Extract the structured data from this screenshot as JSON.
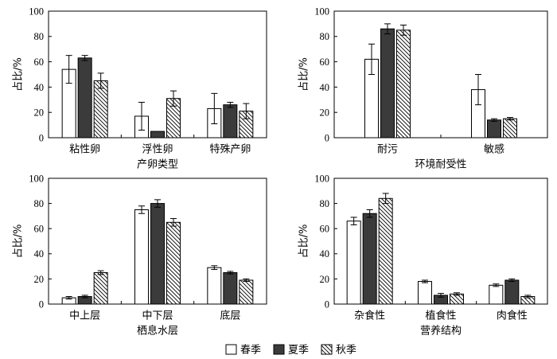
{
  "legend": {
    "position": "bottom",
    "items": [
      {
        "label": "春季",
        "fill": "#ffffff",
        "hatch": false
      },
      {
        "label": "夏季",
        "fill": "#3b3b3b",
        "hatch": false
      },
      {
        "label": "秋季",
        "fill": "#ffffff",
        "hatch": true
      }
    ]
  },
  "chart_data": [
    {
      "type": "bar",
      "xlabel": "产卵类型",
      "ylabel": "占比/%",
      "ylim": [
        0,
        100
      ],
      "yticks": [
        0,
        20,
        40,
        60,
        80,
        100
      ],
      "grid": false,
      "categories": [
        "粘性卵",
        "浮性卵",
        "特殊产卵"
      ],
      "series": [
        {
          "name": "春季",
          "values": [
            54,
            17,
            23
          ],
          "errors": [
            11,
            11,
            12
          ]
        },
        {
          "name": "夏季",
          "values": [
            63,
            5,
            26
          ],
          "errors": [
            2,
            0,
            2
          ]
        },
        {
          "name": "秋季",
          "values": [
            45,
            31,
            21
          ],
          "errors": [
            6,
            6,
            6
          ]
        }
      ]
    },
    {
      "type": "bar",
      "xlabel": "环境耐受性",
      "ylabel": "占比/%",
      "ylim": [
        0,
        100
      ],
      "yticks": [
        0,
        20,
        40,
        60,
        80,
        100
      ],
      "grid": false,
      "categories": [
        "耐污",
        "敏感"
      ],
      "series": [
        {
          "name": "春季",
          "values": [
            62,
            38
          ],
          "errors": [
            12,
            12
          ]
        },
        {
          "name": "夏季",
          "values": [
            86,
            14
          ],
          "errors": [
            4,
            1
          ]
        },
        {
          "name": "秋季",
          "values": [
            85,
            15
          ],
          "errors": [
            4,
            1
          ]
        }
      ]
    },
    {
      "type": "bar",
      "xlabel": "栖息水层",
      "ylabel": "占比/%",
      "ylim": [
        0,
        100
      ],
      "yticks": [
        0,
        20,
        40,
        60,
        80,
        100
      ],
      "grid": false,
      "categories": [
        "中上层",
        "中下层",
        "底层"
      ],
      "series": [
        {
          "name": "春季",
          "values": [
            5,
            75,
            29
          ],
          "errors": [
            1,
            3,
            1.5
          ]
        },
        {
          "name": "夏季",
          "values": [
            6,
            80,
            25
          ],
          "errors": [
            1,
            3,
            1
          ]
        },
        {
          "name": "秋季",
          "values": [
            25,
            65,
            19
          ],
          "errors": [
            1.5,
            3,
            1
          ]
        }
      ]
    },
    {
      "type": "bar",
      "xlabel": "营养结构",
      "ylabel": "占比/%",
      "ylim": [
        0,
        100
      ],
      "yticks": [
        0,
        20,
        40,
        60,
        80,
        100
      ],
      "grid": false,
      "categories": [
        "杂食性",
        "植食性",
        "肉食性"
      ],
      "series": [
        {
          "name": "春季",
          "values": [
            66,
            18,
            15
          ],
          "errors": [
            3,
            1,
            1
          ]
        },
        {
          "name": "夏季",
          "values": [
            72,
            7,
            19
          ],
          "errors": [
            3,
            1.5,
            1
          ]
        },
        {
          "name": "秋季",
          "values": [
            84,
            8,
            6
          ],
          "errors": [
            4,
            1,
            1
          ]
        }
      ]
    }
  ]
}
